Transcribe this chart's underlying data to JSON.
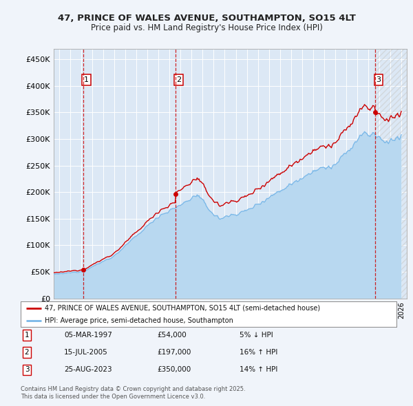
{
  "title_line1": "47, PRINCE OF WALES AVENUE, SOUTHAMPTON, SO15 4LT",
  "title_line2": "Price paid vs. HM Land Registry's House Price Index (HPI)",
  "background_color": "#f0f4fa",
  "plot_bg_color": "#dce8f5",
  "grid_color": "#ffffff",
  "sale_color": "#cc0000",
  "hpi_color": "#7ab8e8",
  "hpi_fill_color": "#b8d8f0",
  "sale_dates": [
    1997.17,
    2005.54,
    2023.65
  ],
  "sale_prices": [
    54000,
    197000,
    350000
  ],
  "sale_labels": [
    "1",
    "2",
    "3"
  ],
  "legend_sale": "47, PRINCE OF WALES AVENUE, SOUTHAMPTON, SO15 4LT (semi-detached house)",
  "legend_hpi": "HPI: Average price, semi-detached house, Southampton",
  "table_rows": [
    [
      "1",
      "05-MAR-1997",
      "£54,000",
      "5% ↓ HPI"
    ],
    [
      "2",
      "15-JUL-2005",
      "£197,000",
      "16% ↑ HPI"
    ],
    [
      "3",
      "25-AUG-2023",
      "£350,000",
      "14% ↑ HPI"
    ]
  ],
  "footnote": "Contains HM Land Registry data © Crown copyright and database right 2025.\nThis data is licensed under the Open Government Licence v3.0.",
  "xmin": 1994.5,
  "xmax": 2026.5,
  "ymin": 0,
  "ymax": 470000,
  "yticks": [
    0,
    50000,
    100000,
    150000,
    200000,
    250000,
    300000,
    350000,
    400000,
    450000
  ],
  "ytick_labels": [
    "£0",
    "£50K",
    "£100K",
    "£150K",
    "£200K",
    "£250K",
    "£300K",
    "£350K",
    "£400K",
    "£450K"
  ]
}
